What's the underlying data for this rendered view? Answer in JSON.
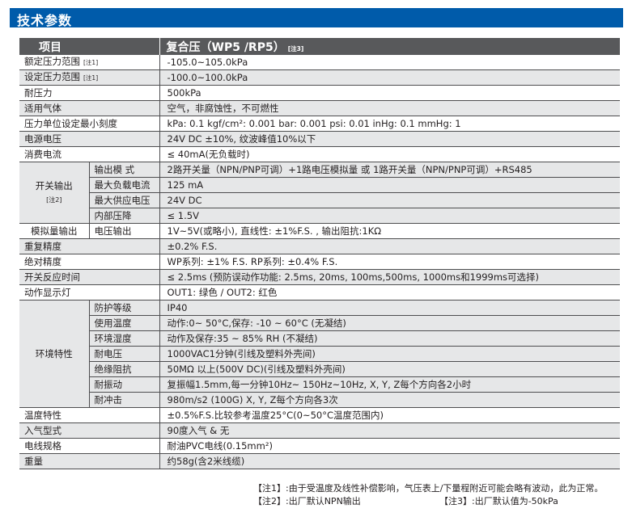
{
  "title": "技术参数",
  "header": {
    "item": "项目",
    "value": "复合压（WP5 /RP5）",
    "value_note": "[注3]"
  },
  "rows": [
    {
      "label": "额定压力范围",
      "note": "[注1]",
      "value": "-105.0~105.0kPa"
    },
    {
      "label": "设定压力范围",
      "note": "[注1]",
      "value": "-100.0~100.0kPa"
    },
    {
      "label": "耐压力",
      "value": "500kPa"
    },
    {
      "label": "适用气体",
      "value": "空气，非腐蚀性，不可燃性"
    },
    {
      "label": "压力单位设定最小刻度",
      "value": "kPa: 0.1    kgf/cm²: 0.001      bar: 0.001       psi: 0.01       inHg: 0.1        mmHg: 1"
    },
    {
      "label": "电源电压",
      "value": "24V DC ±10%, 纹波峰值10%以下"
    },
    {
      "label": "消费电流",
      "value": "≤ 40mA(无负载时)"
    },
    {
      "group": "开关输出",
      "note": "[注2]",
      "items": [
        {
          "label": "输出模 式",
          "value": "2路开关量（NPN/PNP可调）+1路电压模拟量 或 1路开关量（NPN/PNP可调）+RS485"
        },
        {
          "label": "最大负载电流",
          "value": "125 mA"
        },
        {
          "label": "最大供应电压",
          "value": "24V DC"
        },
        {
          "label": "内部压降",
          "value": "≤ 1.5V"
        }
      ]
    },
    {
      "group": "模拟量输出",
      "items": [
        {
          "label": "电压输出",
          "value": "1V~5V(或略小), 直线性: ±1%F.S. , 输出阻抗:1KΩ"
        }
      ]
    },
    {
      "label": "重复精度",
      "value": "±0.2% F.S."
    },
    {
      "label": "绝对精度",
      "value": "WP系列: ±1% F.S.      RP系列: ±0.4% F.S."
    },
    {
      "label": "开关反应时间",
      "value": "≤ 2.5ms (预防误动作功能: 2.5ms, 20ms, 100ms,500ms, 1000ms和1999ms可选择)"
    },
    {
      "label": "动作显示灯",
      "value": "OUT1: 绿色  /  OUT2: 红色"
    },
    {
      "group": "环境特性",
      "items": [
        {
          "label": "防护等级",
          "value": "IP40"
        },
        {
          "label": "使用温度",
          "value": "动作:0~ 50°C,保存: -10 ~ 60°C (无凝结)"
        },
        {
          "label": "环境湿度",
          "value": "动作及保存:35 ~ 85% RH (不凝结)"
        },
        {
          "label": "耐电压",
          "value": "1000VAC1分钟(引线及塑料外壳间)"
        },
        {
          "label": "绝缘阻抗",
          "value": "50MΩ 以上(500V DC)(引线及塑料外壳间)"
        },
        {
          "label": "耐振动",
          "value": "复振幅1.5mm,每一分钟10Hz~ 150Hz~10Hz, X, Y, Z每个方向各2小时"
        },
        {
          "label": "耐冲击",
          "value": "980m/s2 (100G) X, Y, Z每个方向各3次"
        }
      ]
    },
    {
      "label": "温度特性",
      "value": "±0.5%F.S.比较参考温度25°C(0~50°C温度范围内)"
    },
    {
      "label": "入气型式",
      "value": "90度入气 & 无"
    },
    {
      "label": "电线规格",
      "value": "耐油PVC电线(0.15mm²)"
    },
    {
      "label": "重量",
      "value": "约58g(含2米线缆)"
    }
  ],
  "footnotes": {
    "note1": "【注1】:由于受温度及线性补偿影响，气压表上/下量程附近可能会略有波动，此为正常。",
    "note2": "【注2】:出厂默认NPN输出",
    "note3": "【注3】:出厂默认值为-50kPa"
  },
  "colors": {
    "title_bar": "#005BAA",
    "header_bg": "#58595B",
    "shaded_row": "#E6E7E8"
  }
}
